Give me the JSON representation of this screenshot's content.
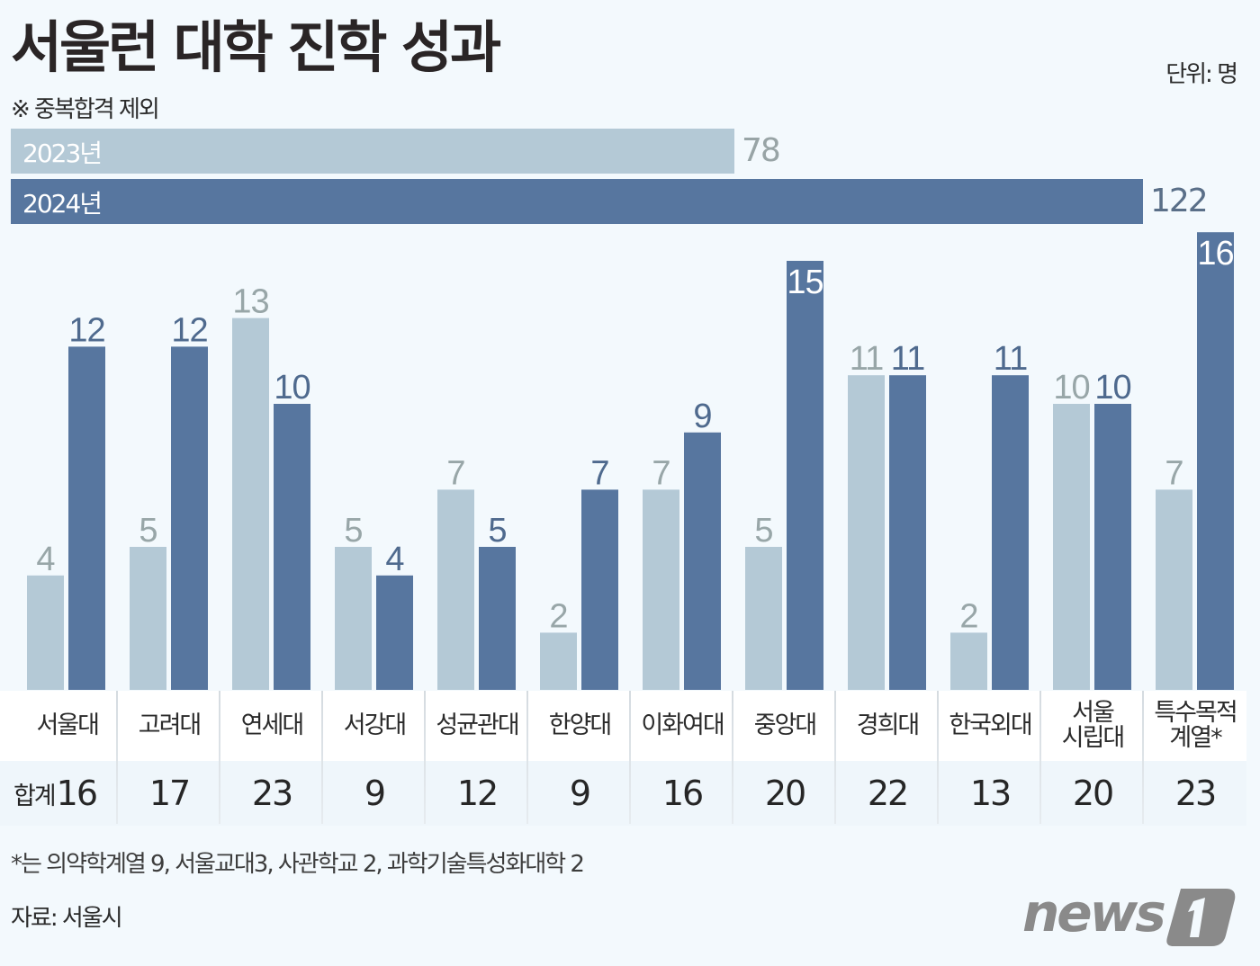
{
  "header": {
    "title": "서울런 대학 진학 성과",
    "subtitle": "※ 중복합격 제외",
    "unit": "단위: 명"
  },
  "colors": {
    "y2023": "#b4c9d6",
    "y2024": "#57769f",
    "label2023": "#98a6a8",
    "label2024": "#4f6a8e",
    "background": "#f3f9fd"
  },
  "chart_data": [
    {
      "type": "bar",
      "orientation": "horizontal",
      "title": "합계",
      "categories": [
        "2023년",
        "2024년"
      ],
      "values": [
        78,
        122
      ],
      "xlim": [
        0,
        122
      ]
    },
    {
      "type": "bar",
      "orientation": "vertical",
      "categories": [
        "서울대",
        "고려대",
        "연세대",
        "서강대",
        "성균관대",
        "한양대",
        "이화여대",
        "중앙대",
        "경희대",
        "한국외대",
        "서울\n시립대",
        "특수목적\n계열*"
      ],
      "series": [
        {
          "name": "2023년",
          "values": [
            4,
            5,
            13,
            5,
            7,
            2,
            7,
            5,
            11,
            2,
            10,
            7
          ]
        },
        {
          "name": "2024년",
          "values": [
            12,
            12,
            10,
            4,
            5,
            7,
            9,
            15,
            11,
            11,
            10,
            16
          ]
        }
      ],
      "ylim": [
        0,
        16
      ],
      "grid": false,
      "unit": "명"
    }
  ],
  "table": {
    "total_prefix": "합계",
    "columns": [
      {
        "name": "서울대",
        "total": "16"
      },
      {
        "name": "고려대",
        "total": "17"
      },
      {
        "name": "연세대",
        "total": "23"
      },
      {
        "name": "서강대",
        "total": "9"
      },
      {
        "name": "성균관대",
        "total": "12"
      },
      {
        "name": "한양대",
        "total": "9"
      },
      {
        "name": "이화여대",
        "total": "16"
      },
      {
        "name": "중앙대",
        "total": "20"
      },
      {
        "name": "경희대",
        "total": "22"
      },
      {
        "name": "한국외대",
        "total": "13"
      },
      {
        "name": "서울\n시립대",
        "total": "20"
      },
      {
        "name": "특수목적\n계열*",
        "total": "23"
      }
    ]
  },
  "footer": {
    "footnote": "*는 의약학계열 9, 서울교대3, 사관학교 2, 과학기술특성화대학 2",
    "source": "자료: 서울시",
    "logo_text": "news1"
  }
}
